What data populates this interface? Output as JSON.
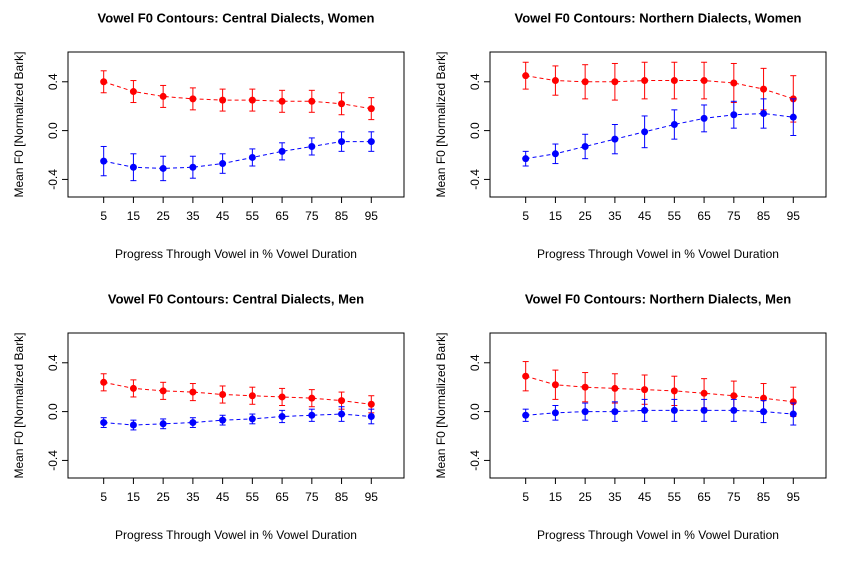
{
  "chart_data": [
    {
      "type": "line",
      "title": "Vowel F0 Contours: Central Dialects, Women",
      "xlabel": "Progress Through Vowel in % Vowel Duration",
      "ylabel": "Mean F0 [Normalized Bark]",
      "x": [
        5,
        15,
        25,
        35,
        45,
        55,
        65,
        75,
        85,
        95
      ],
      "xlim": [
        -7,
        106
      ],
      "xticks": [
        5,
        15,
        25,
        35,
        45,
        55,
        65,
        75,
        85,
        95
      ],
      "ylim": [
        -0.544,
        0.644
      ],
      "yticks": [
        -0.4,
        {
          "value": 0,
          "label": "0.0"
        },
        0.4
      ],
      "series": [
        {
          "color": "#ff0000",
          "values": [
            0.4,
            0.32,
            0.28,
            0.26,
            0.25,
            0.25,
            0.24,
            0.24,
            0.22,
            0.18
          ],
          "errors": [
            0.09,
            0.09,
            0.09,
            0.09,
            0.09,
            0.09,
            0.09,
            0.09,
            0.09,
            0.09
          ]
        },
        {
          "color": "#0000ff",
          "values": [
            -0.25,
            -0.3,
            -0.31,
            -0.3,
            -0.27,
            -0.22,
            -0.17,
            -0.13,
            -0.09,
            -0.09
          ],
          "errors": [
            0.12,
            0.11,
            0.1,
            0.09,
            0.08,
            0.07,
            0.07,
            0.07,
            0.08,
            0.08
          ]
        }
      ]
    },
    {
      "type": "line",
      "title": "Vowel F0 Contours: Northern Dialects, Women",
      "xlabel": "Progress Through Vowel in % Vowel Duration",
      "ylabel": "Mean F0 [Normalized Bark]",
      "x": [
        5,
        15,
        25,
        35,
        45,
        55,
        65,
        75,
        85,
        95
      ],
      "xlim": [
        -7,
        106
      ],
      "xticks": [
        5,
        15,
        25,
        35,
        45,
        55,
        65,
        75,
        85,
        95
      ],
      "ylim": [
        -0.544,
        0.644
      ],
      "yticks": [
        -0.4,
        {
          "value": 0,
          "label": "0.0"
        },
        0.4
      ],
      "series": [
        {
          "color": "#ff0000",
          "values": [
            0.45,
            0.41,
            0.4,
            0.4,
            0.41,
            0.41,
            0.41,
            0.39,
            0.34,
            0.26
          ],
          "errors": [
            0.11,
            0.12,
            0.14,
            0.15,
            0.15,
            0.15,
            0.15,
            0.16,
            0.17,
            0.19
          ]
        },
        {
          "color": "#0000ff",
          "values": [
            -0.23,
            -0.19,
            -0.13,
            -0.07,
            -0.01,
            0.05,
            0.1,
            0.13,
            0.14,
            0.11
          ],
          "errors": [
            0.06,
            0.08,
            0.1,
            0.12,
            0.13,
            0.12,
            0.11,
            0.11,
            0.12,
            0.15
          ]
        }
      ]
    },
    {
      "type": "line",
      "title": "Vowel F0 Contours: Central Dialects, Men",
      "xlabel": "Progress Through Vowel in % Vowel Duration",
      "ylabel": "Mean F0 [Normalized Bark]",
      "x": [
        5,
        15,
        25,
        35,
        45,
        55,
        65,
        75,
        85,
        95
      ],
      "xlim": [
        -7,
        106
      ],
      "xticks": [
        5,
        15,
        25,
        35,
        45,
        55,
        65,
        75,
        85,
        95
      ],
      "ylim": [
        -0.544,
        0.644
      ],
      "yticks": [
        -0.4,
        {
          "value": 0,
          "label": "0.0"
        },
        0.4
      ],
      "series": [
        {
          "color": "#ff0000",
          "values": [
            0.24,
            0.19,
            0.17,
            0.16,
            0.14,
            0.13,
            0.12,
            0.11,
            0.09,
            0.06
          ],
          "errors": [
            0.07,
            0.07,
            0.07,
            0.07,
            0.07,
            0.07,
            0.07,
            0.07,
            0.07,
            0.07
          ]
        },
        {
          "color": "#0000ff",
          "values": [
            -0.09,
            -0.11,
            -0.1,
            -0.09,
            -0.07,
            -0.06,
            -0.04,
            -0.03,
            -0.02,
            -0.04
          ],
          "errors": [
            0.04,
            0.04,
            0.04,
            0.04,
            0.04,
            0.04,
            0.05,
            0.05,
            0.06,
            0.06
          ]
        }
      ]
    },
    {
      "type": "line",
      "title": "Vowel F0 Contours: Northern Dialects, Men",
      "xlabel": "Progress Through Vowel in % Vowel Duration",
      "ylabel": "Mean F0 [Normalized Bark]",
      "x": [
        5,
        15,
        25,
        35,
        45,
        55,
        65,
        75,
        85,
        95
      ],
      "xlim": [
        -7,
        106
      ],
      "xticks": [
        5,
        15,
        25,
        35,
        45,
        55,
        65,
        75,
        85,
        95
      ],
      "ylim": [
        -0.544,
        0.644
      ],
      "yticks": [
        -0.4,
        {
          "value": 0,
          "label": "0.0"
        },
        0.4
      ],
      "series": [
        {
          "color": "#ff0000",
          "values": [
            0.29,
            0.22,
            0.2,
            0.19,
            0.18,
            0.17,
            0.15,
            0.13,
            0.11,
            0.08
          ],
          "errors": [
            0.12,
            0.12,
            0.12,
            0.12,
            0.12,
            0.12,
            0.12,
            0.12,
            0.12,
            0.12
          ]
        },
        {
          "color": "#0000ff",
          "values": [
            -0.03,
            -0.01,
            0.0,
            0.0,
            0.01,
            0.01,
            0.01,
            0.01,
            0.0,
            -0.02
          ],
          "errors": [
            0.05,
            0.06,
            0.07,
            0.08,
            0.09,
            0.09,
            0.09,
            0.09,
            0.09,
            0.09
          ]
        }
      ]
    }
  ]
}
